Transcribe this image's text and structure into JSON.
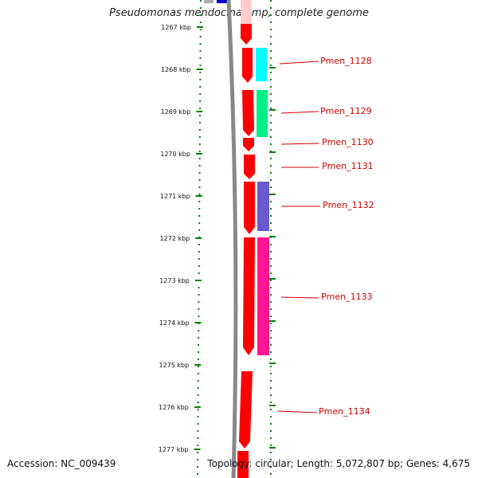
{
  "title": "Pseudomonas mendocina ymp, complete genome",
  "footer": {
    "accession": "Accession: NC_009439",
    "summary": "Topology: circular; Length: 5,072,807 bp; Genes: 4,675"
  },
  "scale": {
    "unit": "kbp",
    "ticks": [
      {
        "label": "1267 kbp"
      },
      {
        "label": "1268 kbp"
      },
      {
        "label": "1269 kbp"
      },
      {
        "label": "1270 kbp"
      },
      {
        "label": "1271 kbp"
      },
      {
        "label": "1272 kbp"
      },
      {
        "label": "1273 kbp"
      },
      {
        "label": "1274 kbp"
      },
      {
        "label": "1275 kbp"
      },
      {
        "label": "1276 kbp"
      },
      {
        "label": "1277 kbp"
      }
    ]
  },
  "genes": [
    {
      "label": "Pmen_1128",
      "color": "#00ffff"
    },
    {
      "label": "Pmen_1129",
      "color": "#00ee88"
    },
    {
      "label": "Pmen_1130",
      "color": "#ff0000"
    },
    {
      "label": "Pmen_1131",
      "color": "#ff0000"
    },
    {
      "label": "Pmen_1132",
      "color": "#6a5acd"
    },
    {
      "label": "Pmen_1133",
      "color": "#ff1493"
    },
    {
      "label": "Pmen_1134",
      "color": "#ff0000"
    }
  ],
  "colors": {
    "cds": "#ff0000",
    "backbone": "#888888",
    "tick": "#008000",
    "label": "#cc0000"
  }
}
